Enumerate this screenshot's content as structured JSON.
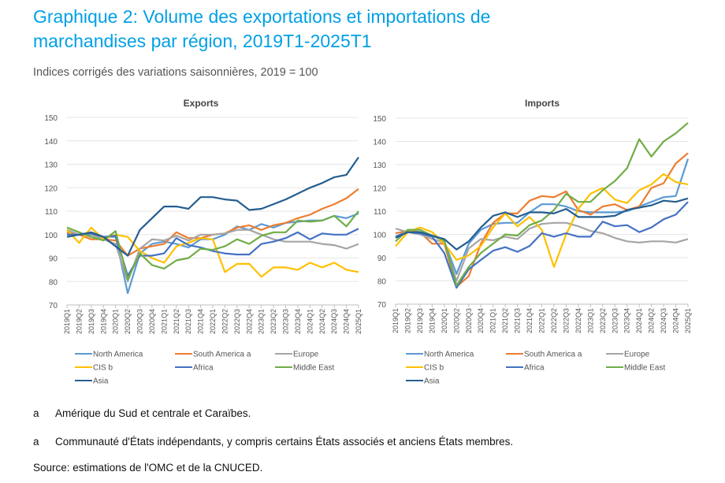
{
  "title_line1": "Graphique 2: Volume des exportations et importations de",
  "title_line2": "marchandises par région, 2019T1-2025T1",
  "subtitle": "Indices corrigés des variations saisonnières, 2019 = 100",
  "notes": [
    {
      "key": "a",
      "text": "Amérique du Sud et centrale et Caraïbes."
    },
    {
      "key": "a",
      "text": "Communauté d'États indépendants, y compris certains États associés et anciens États membres."
    }
  ],
  "source": "Source: estimations de l'OMC et de la CNUCED.",
  "chart_data": [
    {
      "type": "line",
      "title": "Exports",
      "ylim": [
        70,
        150
      ],
      "yticks": [
        70,
        80,
        90,
        100,
        110,
        120,
        130,
        140,
        150
      ],
      "grid": true,
      "legend": "bottom",
      "x": [
        "2019Q1",
        "2019Q2",
        "2019Q3",
        "2019Q4",
        "2020Q1",
        "2020Q2",
        "2020Q3",
        "2020Q4",
        "2021Q1",
        "2021Q2",
        "2021Q3",
        "2021Q4",
        "2022Q1",
        "2022Q2",
        "2022Q3",
        "2022Q4",
        "2023Q1",
        "2023Q2",
        "2023Q3",
        "2023Q4",
        "2024Q1",
        "2024Q2",
        "2024Q3",
        "2024Q4",
        "2025Q1"
      ],
      "series": [
        {
          "name": "North America",
          "color": "#5b9bd5",
          "values": [
            100.5,
            100,
            100,
            99,
            99,
            75,
            92,
            96,
            97,
            96,
            94.5,
            98,
            98,
            100,
            103.5,
            102,
            104.5,
            103,
            105,
            105.5,
            106,
            106,
            108,
            107,
            109
          ]
        },
        {
          "name": "South America a",
          "color": "#ed7d31",
          "values": [
            101,
            100,
            98,
            98,
            97.5,
            91,
            94,
            95,
            96,
            101,
            98.5,
            98.5,
            100,
            100.5,
            103,
            104,
            102,
            104,
            105,
            107,
            108.5,
            111,
            113,
            115.5,
            119.5
          ]
        },
        {
          "name": "Europe",
          "color": "#a5a5a5",
          "values": [
            102,
            100,
            100,
            98,
            96,
            80,
            94,
            98,
            97.5,
            99.5,
            97.5,
            100,
            100,
            100.5,
            102,
            102,
            100,
            98,
            97,
            97,
            97,
            96,
            95.5,
            94,
            96
          ]
        },
        {
          "name": "CIS b",
          "color": "#ffc000",
          "values": [
            102,
            96.5,
            103,
            98,
            100,
            99,
            93,
            90,
            88,
            95,
            96.5,
            98.5,
            98,
            84,
            87.5,
            87.5,
            82,
            86,
            86,
            85,
            88,
            86,
            88,
            85,
            84
          ]
        },
        {
          "name": "Africa",
          "color": "#4472c4",
          "values": [
            100,
            100,
            100.5,
            99,
            99.5,
            82.5,
            91,
            91,
            92,
            98.5,
            95.5,
            94.5,
            93,
            92,
            91.5,
            91.5,
            96,
            97,
            98.5,
            101,
            98,
            100.5,
            100,
            100,
            102.5
          ]
        },
        {
          "name": "Middle East",
          "color": "#70ad47",
          "values": [
            103,
            101,
            99,
            97.5,
            101.5,
            81,
            92,
            87,
            85.5,
            89,
            90,
            94,
            93.5,
            95,
            98,
            96,
            99.5,
            101,
            101,
            106,
            105.5,
            106,
            108,
            103.5,
            110
          ]
        },
        {
          "name": "Asia",
          "color": "#255e91",
          "values": [
            99,
            100,
            101,
            99,
            95,
            91,
            102,
            107,
            112,
            112,
            111,
            116,
            116,
            115,
            114.5,
            110.5,
            111,
            113,
            115,
            117.5,
            120,
            122,
            124.5,
            125.5,
            133
          ]
        }
      ]
    },
    {
      "type": "line",
      "title": "Imports",
      "ylim": [
        70,
        150
      ],
      "yticks": [
        70,
        80,
        90,
        100,
        110,
        120,
        130,
        140,
        150
      ],
      "grid": true,
      "legend": "bottom",
      "x": [
        "2019Q1",
        "2019Q2",
        "2019Q3",
        "2019Q4",
        "2020Q1",
        "2020Q2",
        "2020Q3",
        "2020Q4",
        "2021Q1",
        "2021Q2",
        "2021Q3",
        "2021Q4",
        "2022Q1",
        "2022Q2",
        "2022Q3",
        "2022Q4",
        "2023Q1",
        "2023Q2",
        "2023Q3",
        "2023Q4",
        "2024Q1",
        "2024Q2",
        "2024Q3",
        "2024Q4",
        "2025Q1"
      ],
      "series": [
        {
          "name": "North America",
          "color": "#5b9bd5",
          "values": [
            99,
            101.5,
            101,
            99.5,
            97,
            83,
            96,
            102,
            104.5,
            105,
            105,
            109.5,
            113,
            113,
            112,
            110,
            109.5,
            109.5,
            109.5,
            110,
            112,
            114,
            116,
            116.5,
            132.5
          ]
        },
        {
          "name": "South America a",
          "color": "#ed7d31",
          "values": [
            100.5,
            101.5,
            101,
            96,
            96,
            77.5,
            82,
            96,
            105,
            109,
            109,
            114.5,
            116.5,
            116,
            118.5,
            110.5,
            108.5,
            112,
            113,
            110.5,
            112,
            120,
            122,
            130.5,
            135
          ]
        },
        {
          "name": "Europe",
          "color": "#a5a5a5",
          "values": [
            102.5,
            101,
            100,
            98,
            96.5,
            80,
            94,
            98,
            97.5,
            99,
            98,
            102.5,
            104.5,
            105,
            105,
            103.5,
            101.5,
            100.5,
            98.5,
            97,
            96.5,
            97,
            97,
            96.5,
            98
          ]
        },
        {
          "name": "CIS b",
          "color": "#ffc000",
          "values": [
            95,
            101,
            103,
            101,
            96,
            89,
            91,
            95,
            103,
            109,
            103.5,
            107.5,
            102,
            86,
            100,
            111,
            117.5,
            120,
            115,
            113.5,
            119,
            121.5,
            126,
            122.5,
            121.5
          ]
        },
        {
          "name": "Africa",
          "color": "#4472c4",
          "values": [
            99,
            101,
            100.5,
            99,
            92,
            77,
            85,
            89,
            93,
            94.5,
            92.5,
            95,
            100.5,
            99,
            100.5,
            99,
            99,
            105.5,
            103.5,
            104,
            101,
            103,
            106.5,
            108.5,
            114
          ]
        },
        {
          "name": "Middle East",
          "color": "#70ad47",
          "values": [
            97,
            102,
            102,
            99.5,
            97.5,
            78,
            86,
            92,
            96,
            100,
            99.5,
            104,
            106,
            110.5,
            117.5,
            114,
            114,
            119,
            123,
            128.5,
            141,
            133.5,
            140,
            143.5,
            148
          ]
        },
        {
          "name": "Asia",
          "color": "#255e91",
          "values": [
            98.5,
            101,
            101,
            99.5,
            98,
            93.5,
            97,
            103,
            108,
            109.5,
            107.5,
            109.5,
            109.5,
            109,
            111,
            107.5,
            107.5,
            107.5,
            108,
            110.5,
            111.5,
            112.5,
            114.5,
            114,
            115.5
          ]
        }
      ]
    }
  ]
}
